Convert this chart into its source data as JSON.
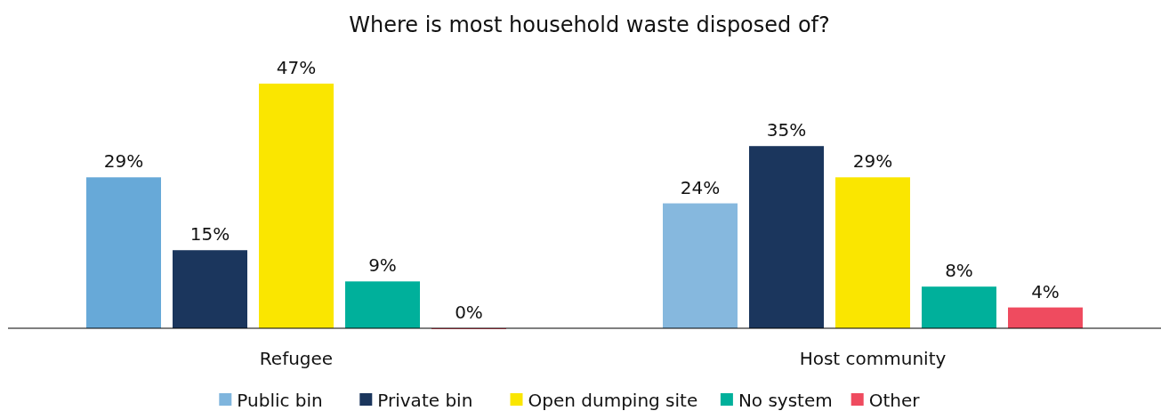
{
  "chart_data": {
    "type": "bar",
    "title": "Where is most household waste disposed of?",
    "categories": [
      "Refugee",
      "Host community"
    ],
    "series": [
      {
        "name": "Public bin",
        "color": "#7fb5dd",
        "colors": [
          "#67a9d8",
          "#86b8de"
        ],
        "values": [
          29,
          24
        ],
        "value_labels": [
          "29%",
          "24%"
        ]
      },
      {
        "name": "Private bin",
        "color": "#1b365d",
        "values": [
          15,
          35
        ],
        "value_labels": [
          "15%",
          "35%"
        ]
      },
      {
        "name": "Open dumping site",
        "color": "#fae600",
        "values": [
          47,
          29
        ],
        "value_labels": [
          "47%",
          "29%"
        ]
      },
      {
        "name": "No system",
        "color": "#00b09b",
        "values": [
          9,
          8
        ],
        "value_labels": [
          "9%",
          "8%"
        ]
      },
      {
        "name": "Other",
        "color": "#ef4b5f",
        "values": [
          0,
          4
        ],
        "value_labels": [
          "0%",
          "4%"
        ]
      }
    ],
    "legend": "bottom"
  }
}
